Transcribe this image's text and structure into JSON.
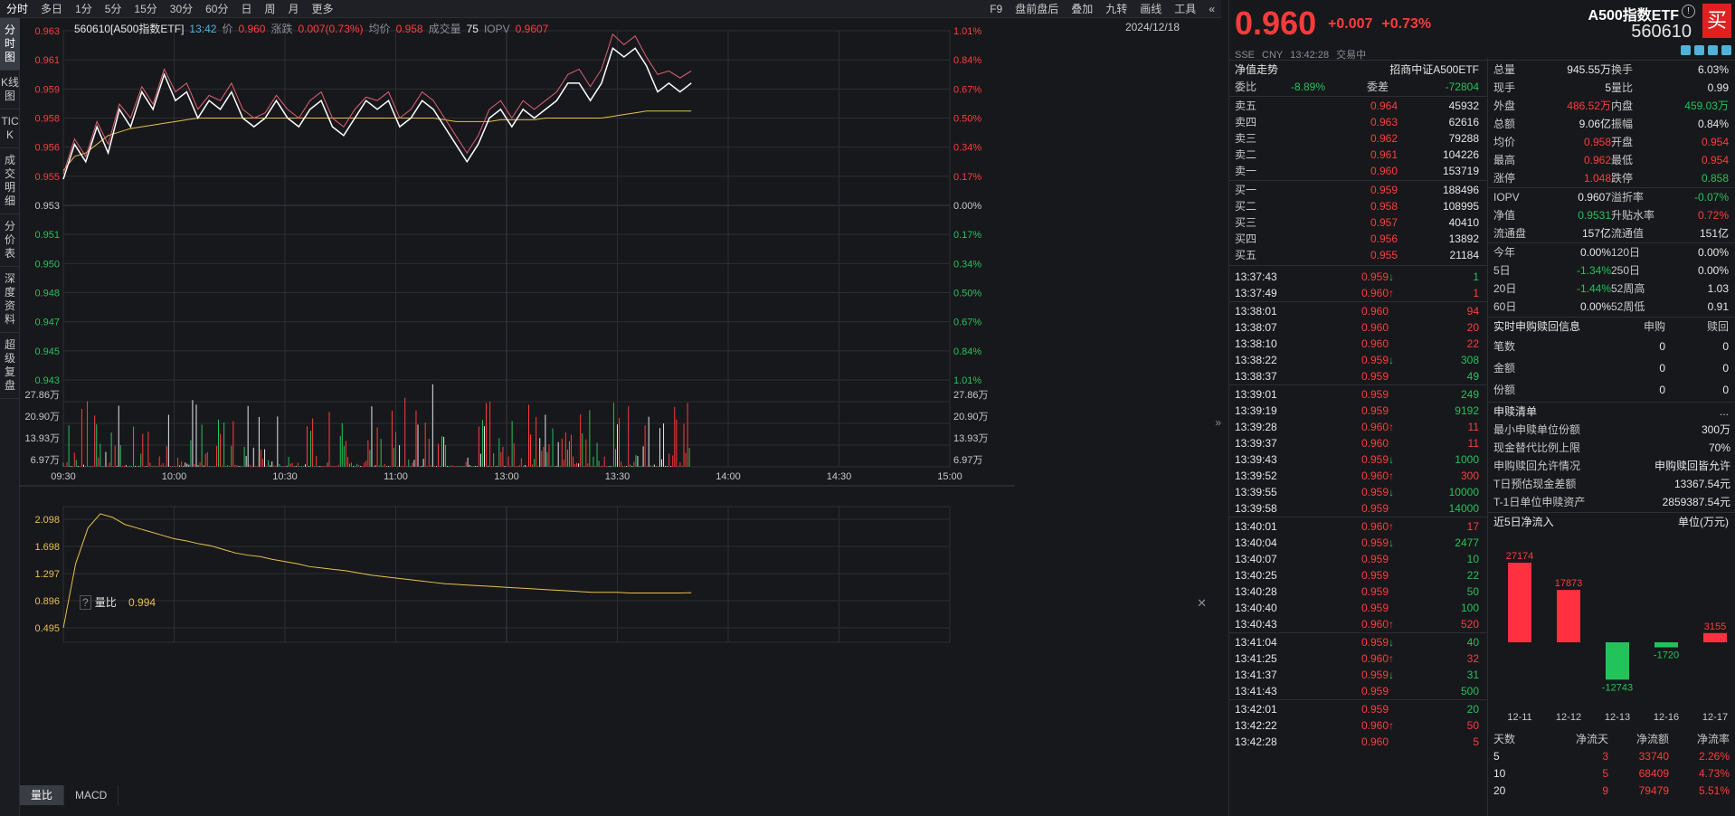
{
  "topbar": {
    "tabs": [
      "分时",
      "多日",
      "1分",
      "5分",
      "15分",
      "30分",
      "60分",
      "日",
      "周",
      "月",
      "更多"
    ],
    "right": [
      "F9",
      "盘前盘后",
      "叠加",
      "九转",
      "画线",
      "工具"
    ]
  },
  "sidebar": [
    "分时图",
    "K线图",
    "TICK",
    "成交明细",
    "分价表",
    "深度资料",
    "超级复盘"
  ],
  "info": {
    "code": "560610[A500指数ETF]",
    "time": "13:42",
    "price_label": "价",
    "price": "0.960",
    "chg_label": "涨跌",
    "chg": "0.007(0.73%)",
    "avg_label": "均价",
    "avg": "0.958",
    "vol_label": "成交量",
    "vol": "75",
    "iopv_label": "IOPV",
    "iopv": "0.9607",
    "date": "2024/12/18"
  },
  "price_axis": {
    "left": [
      "0.963",
      "0.961",
      "0.959",
      "0.958",
      "0.956",
      "0.955",
      "0.953",
      "0.951",
      "0.950",
      "0.948",
      "0.947",
      "0.945",
      "0.943"
    ],
    "right": [
      "1.01%",
      "0.84%",
      "0.67%",
      "0.50%",
      "0.34%",
      "0.17%",
      "0.00%",
      "0.17%",
      "0.34%",
      "0.50%",
      "0.67%",
      "0.84%",
      "1.01%"
    ]
  },
  "vol_axis": [
    "27.86万",
    "20.90万",
    "13.93万",
    "6.97万"
  ],
  "time_axis": [
    "09:30",
    "10:00",
    "10:30",
    "11:00",
    "13:00",
    "13:30",
    "14:00",
    "14:30",
    "15:00"
  ],
  "sub": {
    "label": "量比",
    "value": "0.994",
    "axis": [
      "2.098",
      "1.698",
      "1.297",
      "0.896",
      "0.495"
    ]
  },
  "bottom_tabs": [
    "量比",
    "MACD"
  ],
  "chart_data": {
    "type": "line",
    "price_series": [
      0.9545,
      0.9565,
      0.9555,
      0.9575,
      0.956,
      0.9585,
      0.9575,
      0.9595,
      0.9585,
      0.9605,
      0.959,
      0.9595,
      0.958,
      0.959,
      0.9585,
      0.9595,
      0.958,
      0.9575,
      0.958,
      0.959,
      0.958,
      0.9575,
      0.9585,
      0.959,
      0.9575,
      0.957,
      0.958,
      0.959,
      0.9585,
      0.959,
      0.9575,
      0.958,
      0.959,
      0.9585,
      0.9575,
      0.9565,
      0.9555,
      0.9565,
      0.958,
      0.9585,
      0.9575,
      0.9585,
      0.958,
      0.9585,
      0.959,
      0.96,
      0.96,
      0.959,
      0.96,
      0.962,
      0.9615,
      0.962,
      0.961,
      0.9595,
      0.96,
      0.9595,
      0.96
    ],
    "avg_series": [
      0.955,
      0.9558,
      0.956,
      0.9565,
      0.957,
      0.9572,
      0.9574,
      0.9575,
      0.9576,
      0.9577,
      0.9578,
      0.9579,
      0.958,
      0.958,
      0.958,
      0.958,
      0.958,
      0.958,
      0.958,
      0.958,
      0.958,
      0.958,
      0.958,
      0.958,
      0.958,
      0.958,
      0.958,
      0.958,
      0.958,
      0.958,
      0.958,
      0.958,
      0.958,
      0.958,
      0.9579,
      0.9578,
      0.9578,
      0.9578,
      0.9578,
      0.9579,
      0.9579,
      0.9579,
      0.9579,
      0.958,
      0.958,
      0.958,
      0.958,
      0.958,
      0.958,
      0.9581,
      0.9582,
      0.9583,
      0.9584,
      0.9584,
      0.9584,
      0.9584,
      0.9584
    ],
    "iopv_series": [
      0.9548,
      0.9568,
      0.9558,
      0.9578,
      0.9565,
      0.9588,
      0.958,
      0.9598,
      0.9588,
      0.9608,
      0.9595,
      0.96,
      0.9585,
      0.9593,
      0.959,
      0.96,
      0.9585,
      0.958,
      0.9583,
      0.9593,
      0.9585,
      0.958,
      0.959,
      0.9595,
      0.958,
      0.9575,
      0.9585,
      0.9592,
      0.959,
      0.9595,
      0.958,
      0.9585,
      0.9595,
      0.959,
      0.958,
      0.957,
      0.956,
      0.957,
      0.9585,
      0.959,
      0.958,
      0.959,
      0.9585,
      0.959,
      0.9595,
      0.9605,
      0.9608,
      0.9598,
      0.9608,
      0.9628,
      0.9622,
      0.9627,
      0.9615,
      0.9605,
      0.9607,
      0.9603,
      0.9607
    ],
    "ylim": [
      0.943,
      0.963
    ],
    "volume_max": 348000,
    "vol_ratio": [
      0.5,
      1.4,
      1.9,
      2.1,
      2.05,
      1.95,
      1.9,
      1.85,
      1.8,
      1.75,
      1.72,
      1.68,
      1.65,
      1.6,
      1.55,
      1.52,
      1.5,
      1.46,
      1.43,
      1.4,
      1.36,
      1.34,
      1.32,
      1.3,
      1.27,
      1.24,
      1.22,
      1.2,
      1.18,
      1.16,
      1.14,
      1.12,
      1.11,
      1.1,
      1.09,
      1.08,
      1.07,
      1.06,
      1.05,
      1.04,
      1.03,
      1.02,
      1.01,
      1.0,
      1.0,
      1.0,
      0.99,
      0.99,
      0.99,
      0.99,
      0.99,
      0.994
    ],
    "vr_ylim": [
      0.3,
      2.2
    ]
  },
  "right": {
    "price": "0.960",
    "chg": "+0.007",
    "pct": "+0.73%",
    "name": "A500指数ETF",
    "code": "560610",
    "buy": "买",
    "mkt": [
      "SSE",
      "CNY",
      "13:42:28",
      "交易中"
    ],
    "nav": {
      "label": "净值走势",
      "index": "招商中证A500ETF"
    },
    "wb": {
      "l1": "委比",
      "v1": "-8.89%",
      "l2": "委差",
      "v2": "-72804"
    },
    "asks": [
      [
        "卖五",
        "0.964",
        "45932"
      ],
      [
        "卖四",
        "0.963",
        "62616"
      ],
      [
        "卖三",
        "0.962",
        "79288"
      ],
      [
        "卖二",
        "0.961",
        "104226"
      ],
      [
        "卖一",
        "0.960",
        "153719"
      ]
    ],
    "bids": [
      [
        "买一",
        "0.959",
        "188496"
      ],
      [
        "买二",
        "0.958",
        "108995"
      ],
      [
        "买三",
        "0.957",
        "40410"
      ],
      [
        "买四",
        "0.956",
        "13892"
      ],
      [
        "买五",
        "0.955",
        "21184"
      ]
    ],
    "ticks": [
      [
        "13:37:43",
        "0.959",
        "↓",
        "1",
        "d"
      ],
      [
        "13:37:49",
        "0.960",
        "↑",
        "1",
        "u"
      ],
      [
        "13:38:01",
        "0.960",
        "",
        "94",
        "u"
      ],
      [
        "13:38:07",
        "0.960",
        "",
        "20",
        "u"
      ],
      [
        "13:38:10",
        "0.960",
        "",
        "22",
        "u"
      ],
      [
        "13:38:22",
        "0.959",
        "↓",
        "308",
        "d"
      ],
      [
        "13:38:37",
        "0.959",
        "",
        "49",
        "d"
      ],
      [
        "13:39:01",
        "0.959",
        "",
        "249",
        "d"
      ],
      [
        "13:39:19",
        "0.959",
        "",
        "9192",
        "d"
      ],
      [
        "13:39:28",
        "0.960",
        "↑",
        "11",
        "u"
      ],
      [
        "13:39:37",
        "0.960",
        "",
        "11",
        "u"
      ],
      [
        "13:39:43",
        "0.959",
        "↓",
        "1000",
        "d"
      ],
      [
        "13:39:52",
        "0.960",
        "↑",
        "300",
        "u"
      ],
      [
        "13:39:55",
        "0.959",
        "↓",
        "10000",
        "d"
      ],
      [
        "13:39:58",
        "0.959",
        "",
        "14000",
        "d"
      ],
      [
        "13:40:01",
        "0.960",
        "↑",
        "17",
        "u"
      ],
      [
        "13:40:04",
        "0.959",
        "↓",
        "2477",
        "d"
      ],
      [
        "13:40:07",
        "0.959",
        "",
        "10",
        "d"
      ],
      [
        "13:40:25",
        "0.959",
        "",
        "22",
        "d"
      ],
      [
        "13:40:28",
        "0.959",
        "",
        "50",
        "d"
      ],
      [
        "13:40:40",
        "0.959",
        "",
        "100",
        "d"
      ],
      [
        "13:40:43",
        "0.960",
        "↑",
        "520",
        "u"
      ],
      [
        "13:41:04",
        "0.959",
        "↓",
        "40",
        "d"
      ],
      [
        "13:41:25",
        "0.960",
        "↑",
        "32",
        "u"
      ],
      [
        "13:41:37",
        "0.959",
        "↓",
        "31",
        "d"
      ],
      [
        "13:41:43",
        "0.959",
        "",
        "500",
        "d"
      ],
      [
        "13:42:01",
        "0.959",
        "",
        "20",
        "d"
      ],
      [
        "13:42:22",
        "0.960",
        "↑",
        "50",
        "u"
      ],
      [
        "13:42:28",
        "0.960",
        "",
        "5",
        "u"
      ]
    ],
    "stats": [
      [
        "总量",
        "945.55万",
        "w",
        "换手",
        "6.03%",
        "w"
      ],
      [
        "现手",
        "5",
        "w",
        "量比",
        "0.99",
        "w"
      ],
      [
        "外盘",
        "486.52万",
        "u",
        "内盘",
        "459.03万",
        "d"
      ],
      [
        "总额",
        "9.06亿",
        "w",
        "振幅",
        "0.84%",
        "w"
      ],
      [
        "均价",
        "0.958",
        "u",
        "开盘",
        "0.954",
        "u"
      ],
      [
        "最高",
        "0.962",
        "u",
        "最低",
        "0.954",
        "u"
      ],
      [
        "涨停",
        "1.048",
        "u",
        "跌停",
        "0.858",
        "d"
      ],
      [
        "IOPV",
        "0.9607",
        "w",
        "溢折率",
        "-0.07%",
        "d"
      ],
      [
        "净值",
        "0.9531",
        "d",
        "升贴水率",
        "0.72%",
        "u"
      ],
      [
        "流通盘",
        "157亿",
        "w",
        "流通值",
        "151亿",
        "w"
      ],
      [
        "今年",
        "0.00%",
        "w",
        "120日",
        "0.00%",
        "w"
      ],
      [
        "5日",
        "-1.34%",
        "d",
        "250日",
        "0.00%",
        "w"
      ],
      [
        "20日",
        "-1.44%",
        "d",
        "52周高",
        "1.03",
        "w"
      ],
      [
        "60日",
        "0.00%",
        "w",
        "52周低",
        "0.91",
        "w"
      ]
    ],
    "sg": {
      "title": "实时申购赎回信息",
      "h1": "申购",
      "h2": "赎回",
      "rows": [
        [
          "笔数",
          "0",
          "0"
        ],
        [
          "金额",
          "0",
          "0"
        ],
        [
          "份额",
          "0",
          "0"
        ]
      ]
    },
    "list": {
      "title": "申赎清单",
      "more": "...",
      "rows": [
        [
          "最小申赎单位份额",
          "300万"
        ],
        [
          "现金替代比例上限",
          "70%"
        ],
        [
          "申购赎回允许情况",
          "申购赎回皆允许"
        ],
        [
          "T日预估现金差额",
          "13367.54元"
        ],
        [
          "T-1日单位申赎资产",
          "2859387.54元"
        ]
      ]
    },
    "flow": {
      "title": "近5日净流入",
      "unit": "单位(万元)",
      "dates": [
        "12-11",
        "12-12",
        "12-13",
        "12-16",
        "12-17"
      ],
      "values": [
        27174,
        17873,
        -12743,
        -1720,
        3155
      ]
    },
    "ft": {
      "headers": [
        "天数",
        "净流天",
        "净流额",
        "净流率"
      ],
      "rows": [
        [
          "5",
          "3",
          "33740",
          "2.26%"
        ],
        [
          "10",
          "5",
          "68409",
          "4.73%"
        ],
        [
          "20",
          "9",
          "79479",
          "5.51%"
        ]
      ]
    }
  },
  "colors": {
    "up": "#ff3b3b",
    "down": "#22c35a",
    "price_line": "#ffffff",
    "avg_line": "#e8c04a",
    "iopv_line": "#e06070",
    "grid": "#2c2e34"
  }
}
